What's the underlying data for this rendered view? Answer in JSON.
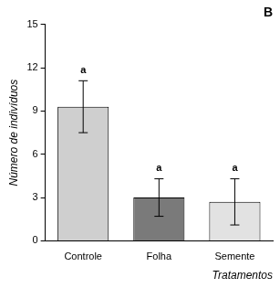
{
  "chart_data": {
    "type": "bar",
    "title": "B",
    "x_label": "Tratamentos",
    "y_label": "Número de indivíduos",
    "categories": [
      "Controle",
      "Folha",
      "Semente"
    ],
    "values": [
      9.3,
      3.0,
      2.7
    ],
    "error_lower": [
      7.5,
      1.7,
      1.1
    ],
    "error_upper": [
      11.1,
      4.3,
      4.3
    ],
    "annotations": [
      "a",
      "a",
      "a"
    ],
    "colors": [
      "#cfcfcf",
      "#7a7a7a",
      "#e2e2e2"
    ],
    "ylim": [
      0,
      15
    ],
    "yticks": [
      0,
      3,
      6,
      9,
      12,
      15
    ],
    "grid": false
  }
}
